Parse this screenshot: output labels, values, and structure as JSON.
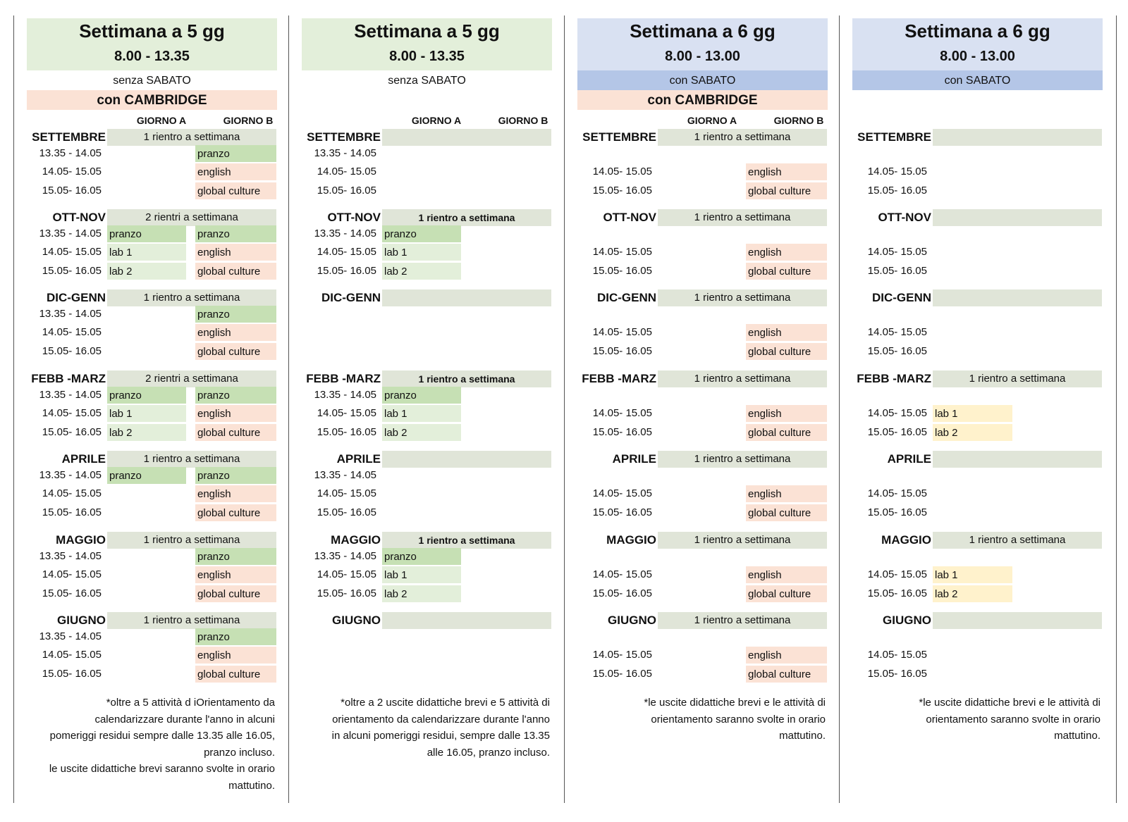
{
  "colors": {
    "header_green": "#e3efda",
    "header_blue": "#d9e1f2",
    "saturday_blue": "#b4c6e7",
    "cambridge_peach": "#fbe2d5",
    "month_bar": "#e0e5d8",
    "pranzo": "#c6e0b4",
    "english": "#fbe2d5",
    "lab_green": "#e3efda",
    "lab_yellow": "#fff2cc"
  },
  "panels": [
    {
      "title": "Settimana a  5 gg",
      "hours": "8.00 - 13.35",
      "saturday": "senza SABATO",
      "cambridge": "con CAMBRIDGE",
      "col_a": "GIORNO A",
      "col_b": "GIORNO B",
      "months": [
        {
          "name": "SETTEMBRE",
          "rientri": "1 rientro a settimana",
          "times": [
            "13.35 - 14.05",
            "14.05- 15.05",
            "15.05- 16.05"
          ],
          "a": [
            "",
            "",
            ""
          ],
          "b": [
            "pranzo",
            "english",
            "global culture"
          ]
        },
        {
          "name": "OTT-NOV",
          "rientri": "2 rientri a settimana",
          "times": [
            "13.35 - 14.05",
            "14.05- 15.05",
            "15.05- 16.05"
          ],
          "a": [
            "pranzo",
            "lab 1",
            "lab 2"
          ],
          "b": [
            "pranzo",
            "english",
            "global culture"
          ]
        },
        {
          "name": "DIC-GENN",
          "rientri": "1 rientro a settimana",
          "times": [
            "13.35 - 14.05",
            "14.05- 15.05",
            "15.05- 16.05"
          ],
          "a": [
            "",
            "",
            ""
          ],
          "b": [
            "pranzo",
            "english",
            "global culture"
          ]
        },
        {
          "name": "FEBB -MARZ",
          "rientri": "2 rientri a settimana",
          "times": [
            "13.35 - 14.05",
            "14.05- 15.05",
            "15.05- 16.05"
          ],
          "a": [
            "pranzo",
            "lab 1",
            "lab 2"
          ],
          "b": [
            "pranzo",
            "english",
            "global culture"
          ]
        },
        {
          "name": "APRILE",
          "rientri": "1 rientro a settimana",
          "times": [
            "13.35 - 14.05",
            "14.05- 15.05",
            "15.05- 16.05"
          ],
          "a": [
            "pranzo",
            "",
            ""
          ],
          "b": [
            "pranzo",
            "english",
            "global culture"
          ]
        },
        {
          "name": "MAGGIO",
          "rientri": "1 rientro a settimana",
          "times": [
            "13.35 - 14.05",
            "14.05- 15.05",
            "15.05- 16.05"
          ],
          "a": [
            "",
            "",
            ""
          ],
          "b": [
            "pranzo",
            "english",
            "global culture"
          ]
        },
        {
          "name": "GIUGNO",
          "rientri": "1 rientro a settimana",
          "times": [
            "13.35 - 14.05",
            "14.05- 15.05",
            "15.05- 16.05"
          ],
          "a": [
            "",
            "",
            ""
          ],
          "b": [
            "pranzo",
            "english",
            "global culture"
          ]
        }
      ],
      "note": [
        "*oltre a 5 attività d iOrientamento da",
        "calendarizzare durante l'anno in alcuni",
        "pomeriggi residui sempre dalle 13.35 alle 16.05,",
        "pranzo incluso.",
        "le uscite didattiche brevi saranno svolte in orario",
        "mattutino."
      ]
    },
    {
      "title": "Settimana a  5 gg",
      "hours": "8.00 - 13.35",
      "saturday": "senza SABATO",
      "cambridge": "",
      "col_a": "GIORNO A",
      "col_b": "GIORNO B",
      "months": [
        {
          "name": "SETTEMBRE",
          "rientri": "",
          "times": [
            "13.35 - 14.05",
            "14.05- 15.05",
            "15.05- 16.05"
          ],
          "a": [
            "",
            "",
            ""
          ],
          "b": [
            "",
            "",
            ""
          ]
        },
        {
          "name": "OTT-NOV",
          "rientri": "1 rientro a settimana",
          "times": [
            "13.35 - 14.05",
            "14.05- 15.05",
            "15.05- 16.05"
          ],
          "a": [
            "pranzo",
            "lab 1",
            "lab 2"
          ],
          "b": [
            "",
            "",
            ""
          ]
        },
        {
          "name": "DIC-GENN",
          "rientri": "",
          "times": [
            "",
            "",
            ""
          ],
          "a": [
            "",
            "",
            ""
          ],
          "b": [
            "",
            "",
            ""
          ]
        },
        {
          "name": "FEBB -MARZ",
          "rientri": "1 rientro a settimana",
          "times": [
            "13.35 - 14.05",
            "14.05- 15.05",
            "15.05- 16.05"
          ],
          "a": [
            "pranzo",
            "lab 1",
            "lab 2"
          ],
          "b": [
            "",
            "",
            ""
          ]
        },
        {
          "name": "APRILE",
          "rientri": "",
          "times": [
            "13.35 - 14.05",
            "14.05- 15.05",
            "15.05- 16.05"
          ],
          "a": [
            "",
            "",
            ""
          ],
          "b": [
            "",
            "",
            ""
          ]
        },
        {
          "name": "MAGGIO",
          "rientri": "1 rientro a settimana",
          "times": [
            "13.35 - 14.05",
            "14.05- 15.05",
            "15.05- 16.05"
          ],
          "a": [
            "pranzo",
            "lab 1",
            "lab 2"
          ],
          "b": [
            "",
            "",
            ""
          ]
        },
        {
          "name": "GIUGNO",
          "rientri": "",
          "times": [
            "",
            "",
            ""
          ],
          "a": [
            "",
            "",
            ""
          ],
          "b": [
            "",
            "",
            ""
          ]
        }
      ],
      "note": [
        "*oltre a 2 uscite didattiche brevi e 5 attività di",
        "orientamento da calendarizzare durante l'anno",
        "in alcuni pomeriggi residui, sempre dalle 13.35",
        "alle 16.05, pranzo incluso."
      ]
    },
    {
      "title": "Settimana a 6 gg",
      "hours": "8.00 - 13.00",
      "saturday": "con SABATO",
      "cambridge": "con CAMBRIDGE",
      "col_a": "GIORNO A",
      "col_b": "GIORNO B",
      "months": [
        {
          "name": "SETTEMBRE",
          "rientri": "1 rientro a settimana",
          "times": [
            "",
            "14.05- 15.05",
            "15.05- 16.05"
          ],
          "a": [
            "",
            "",
            ""
          ],
          "b": [
            "",
            "english",
            "global culture"
          ]
        },
        {
          "name": "OTT-NOV",
          "rientri": "1 rientro a settimana",
          "times": [
            "",
            "14.05- 15.05",
            "15.05- 16.05"
          ],
          "a": [
            "",
            "",
            ""
          ],
          "b": [
            "",
            "english",
            "global culture"
          ]
        },
        {
          "name": "DIC-GENN",
          "rientri": "1 rientro a settimana",
          "times": [
            "",
            "14.05- 15.05",
            "15.05- 16.05"
          ],
          "a": [
            "",
            "",
            ""
          ],
          "b": [
            "",
            "english",
            "global culture"
          ]
        },
        {
          "name": "FEBB -MARZ",
          "rientri": "1 rientro a settimana",
          "times": [
            "",
            "14.05- 15.05",
            "15.05- 16.05"
          ],
          "a": [
            "",
            "",
            ""
          ],
          "b": [
            "",
            "english",
            "global culture"
          ]
        },
        {
          "name": "APRILE",
          "rientri": "1 rientro a settimana",
          "times": [
            "",
            "14.05- 15.05",
            "15.05- 16.05"
          ],
          "a": [
            "",
            "",
            ""
          ],
          "b": [
            "",
            "english",
            "global culture"
          ]
        },
        {
          "name": "MAGGIO",
          "rientri": "1 rientro a settimana",
          "times": [
            "",
            "14.05- 15.05",
            "15.05- 16.05"
          ],
          "a": [
            "",
            "",
            ""
          ],
          "b": [
            "",
            "english",
            "global culture"
          ]
        },
        {
          "name": "GIUGNO",
          "rientri": "1 rientro a settimana",
          "times": [
            "",
            "14.05- 15.05",
            "15.05- 16.05"
          ],
          "a": [
            "",
            "",
            ""
          ],
          "b": [
            "",
            "english",
            "global culture"
          ]
        }
      ],
      "note": [
        "*le uscite didattiche brevi e le attività di",
        "orientamento saranno svolte in orario",
        "mattutino."
      ]
    },
    {
      "title": "Settimana a 6 gg",
      "hours": "8.00 - 13.00",
      "saturday": "con SABATO",
      "cambridge": "",
      "col_a": "",
      "col_b": "",
      "months": [
        {
          "name": "SETTEMBRE",
          "rientri": "",
          "times": [
            "",
            "14.05- 15.05",
            "15.05- 16.05"
          ],
          "a": [
            "",
            "",
            ""
          ],
          "b": [
            "",
            "",
            ""
          ]
        },
        {
          "name": "OTT-NOV",
          "rientri": "",
          "times": [
            "",
            "14.05- 15.05",
            "15.05- 16.05"
          ],
          "a": [
            "",
            "",
            ""
          ],
          "b": [
            "",
            "",
            ""
          ]
        },
        {
          "name": "DIC-GENN",
          "rientri": "",
          "times": [
            "",
            "14.05- 15.05",
            "15.05- 16.05"
          ],
          "a": [
            "",
            "",
            ""
          ],
          "b": [
            "",
            "",
            ""
          ]
        },
        {
          "name": "FEBB -MARZ",
          "rientri": "1 rientro a settimana",
          "times": [
            "",
            "14.05- 15.05",
            "15.05- 16.05"
          ],
          "a": [
            "",
            "lab 1",
            "lab 2"
          ],
          "b": [
            "",
            "",
            ""
          ]
        },
        {
          "name": "APRILE",
          "rientri": "",
          "times": [
            "",
            "14.05- 15.05",
            "15.05- 16.05"
          ],
          "a": [
            "",
            "",
            ""
          ],
          "b": [
            "",
            "",
            ""
          ]
        },
        {
          "name": "MAGGIO",
          "rientri": "1 rientro a settimana",
          "times": [
            "",
            "14.05- 15.05",
            "15.05- 16.05"
          ],
          "a": [
            "",
            "lab 1",
            "lab 2"
          ],
          "b": [
            "",
            "",
            ""
          ]
        },
        {
          "name": "GIUGNO",
          "rientri": "",
          "times": [
            "",
            "14.05- 15.05",
            "15.05- 16.05"
          ],
          "a": [
            "",
            "",
            ""
          ],
          "b": [
            "",
            "",
            ""
          ]
        }
      ],
      "note": [
        "*le uscite didattiche brevi e le attività di",
        "orientamento saranno svolte in orario",
        "mattutino."
      ]
    }
  ]
}
